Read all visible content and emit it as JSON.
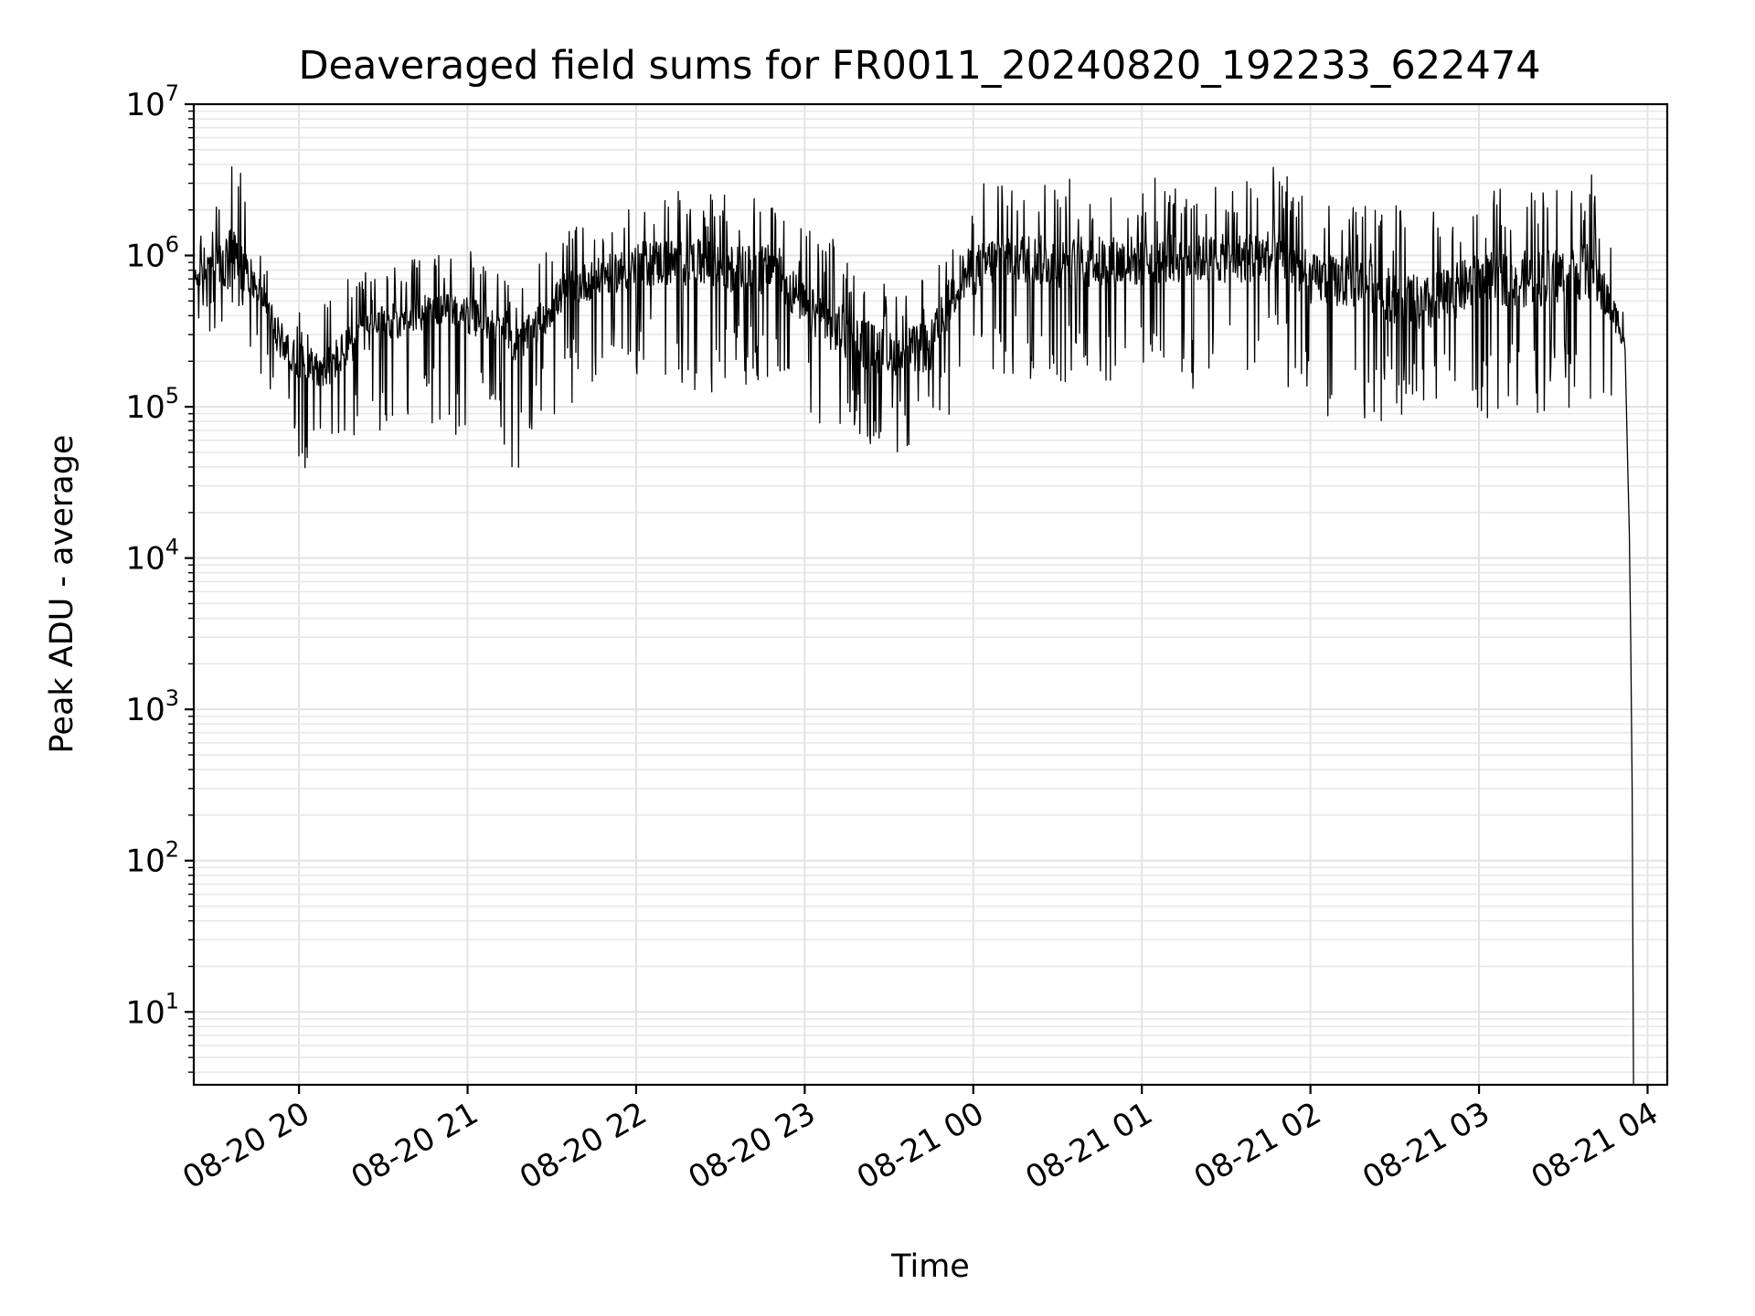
{
  "chart_data": {
    "type": "line",
    "title": "Deaveraged field sums for FR0011_20240820_192233_622474",
    "xlabel": "Time",
    "ylabel": "Peak ADU - average",
    "x_scale": "time",
    "y_scale": "log",
    "xlim": [
      "2024-08-20 19:22:33",
      "2024-08-21 04:07:00"
    ],
    "ylim": [
      3.3,
      10000000
    ],
    "grid": true,
    "x_ticks": [
      {
        "value": "2024-08-20 20:00",
        "label": "08-20 20"
      },
      {
        "value": "2024-08-20 21:00",
        "label": "08-20 21"
      },
      {
        "value": "2024-08-20 22:00",
        "label": "08-20 22"
      },
      {
        "value": "2024-08-20 23:00",
        "label": "08-20 23"
      },
      {
        "value": "2024-08-21 00:00",
        "label": "08-21 00"
      },
      {
        "value": "2024-08-21 01:00",
        "label": "08-21 01"
      },
      {
        "value": "2024-08-21 02:00",
        "label": "08-21 02"
      },
      {
        "value": "2024-08-21 03:00",
        "label": "08-21 03"
      },
      {
        "value": "2024-08-21 04:00",
        "label": "08-21 04"
      }
    ],
    "y_ticks": [
      {
        "value": 10,
        "base": "10",
        "exp": "1"
      },
      {
        "value": 100,
        "base": "10",
        "exp": "2"
      },
      {
        "value": 1000,
        "base": "10",
        "exp": "3"
      },
      {
        "value": 10000,
        "base": "10",
        "exp": "4"
      },
      {
        "value": 100000,
        "base": "10",
        "exp": "5"
      },
      {
        "value": 1000000,
        "base": "10",
        "exp": "6"
      },
      {
        "value": 10000000,
        "base": "10",
        "exp": "7"
      }
    ],
    "series": [
      {
        "color": "#000000",
        "envelope": [
          {
            "t": "2024-08-20 19:22:33",
            "median": 700000,
            "low": 400000,
            "high": 1000000
          },
          {
            "t": "2024-08-20 19:30",
            "median": 800000,
            "low": 280000,
            "high": 2800000
          },
          {
            "t": "2024-08-20 19:37",
            "median": 900000,
            "low": 350000,
            "high": 6000000
          },
          {
            "t": "2024-08-20 19:45",
            "median": 650000,
            "low": 200000,
            "high": 1300000
          },
          {
            "t": "2024-08-20 19:52",
            "median": 300000,
            "low": 60000,
            "high": 800000
          },
          {
            "t": "2024-08-20 20:00",
            "median": 200000,
            "low": 40000,
            "high": 480000
          },
          {
            "t": "2024-08-20 20:10",
            "median": 180000,
            "low": 30000,
            "high": 500000
          },
          {
            "t": "2024-08-20 20:20",
            "median": 280000,
            "low": 55000,
            "high": 800000
          },
          {
            "t": "2024-08-20 20:30",
            "median": 350000,
            "low": 60000,
            "high": 900000
          },
          {
            "t": "2024-08-20 20:40",
            "median": 400000,
            "low": 70000,
            "high": 1000000
          },
          {
            "t": "2024-08-20 20:50",
            "median": 450000,
            "low": 70000,
            "high": 1000000
          },
          {
            "t": "2024-08-20 21:00",
            "median": 400000,
            "low": 60000,
            "high": 1100000
          },
          {
            "t": "2024-08-20 21:10",
            "median": 350000,
            "low": 90000,
            "high": 800000
          },
          {
            "t": "2024-08-20 21:17",
            "median": 250000,
            "low": 30000,
            "high": 600000
          },
          {
            "t": "2024-08-20 21:25",
            "median": 350000,
            "low": 70000,
            "high": 900000
          },
          {
            "t": "2024-08-20 21:35",
            "median": 600000,
            "low": 100000,
            "high": 1600000
          },
          {
            "t": "2024-08-20 21:50",
            "median": 750000,
            "low": 130000,
            "high": 2000000
          },
          {
            "t": "2024-08-20 22:05",
            "median": 900000,
            "low": 150000,
            "high": 3000000
          },
          {
            "t": "2024-08-20 22:20",
            "median": 900000,
            "low": 130000,
            "high": 3000000
          },
          {
            "t": "2024-08-20 22:35",
            "median": 800000,
            "low": 120000,
            "high": 2800000
          },
          {
            "t": "2024-08-20 22:50",
            "median": 800000,
            "low": 150000,
            "high": 3000000
          },
          {
            "t": "2024-08-20 23:00",
            "median": 450000,
            "low": 90000,
            "high": 1500000
          },
          {
            "t": "2024-08-20 23:15",
            "median": 300000,
            "low": 60000,
            "high": 1200000
          },
          {
            "t": "2024-08-20 23:30",
            "median": 220000,
            "low": 50000,
            "high": 700000
          },
          {
            "t": "2024-08-20 23:45",
            "median": 250000,
            "low": 50000,
            "high": 900000
          },
          {
            "t": "2024-08-20 23:55",
            "median": 700000,
            "low": 100000,
            "high": 2500000
          },
          {
            "t": "2024-08-21 00:10",
            "median": 1000000,
            "low": 150000,
            "high": 3500000
          },
          {
            "t": "2024-08-21 00:30",
            "median": 900000,
            "low": 130000,
            "high": 3200000
          },
          {
            "t": "2024-08-21 00:50",
            "median": 900000,
            "low": 120000,
            "high": 3500000
          },
          {
            "t": "2024-08-21 01:10",
            "median": 950000,
            "low": 130000,
            "high": 3200000
          },
          {
            "t": "2024-08-21 01:30",
            "median": 950000,
            "low": 130000,
            "high": 3200000
          },
          {
            "t": "2024-08-21 01:50",
            "median": 1000000,
            "low": 150000,
            "high": 4000000
          },
          {
            "t": "2024-08-21 02:00",
            "median": 700000,
            "low": 80000,
            "high": 2500000
          },
          {
            "t": "2024-08-21 02:20",
            "median": 650000,
            "low": 80000,
            "high": 2400000
          },
          {
            "t": "2024-08-21 02:40",
            "median": 450000,
            "low": 80000,
            "high": 2000000
          },
          {
            "t": "2024-08-21 03:00",
            "median": 700000,
            "low": 80000,
            "high": 2600000
          },
          {
            "t": "2024-08-21 03:20",
            "median": 700000,
            "low": 90000,
            "high": 3000000
          },
          {
            "t": "2024-08-21 03:40",
            "median": 800000,
            "low": 100000,
            "high": 3500000
          },
          {
            "t": "2024-08-21 03:50",
            "median": 350000,
            "low": 70000,
            "high": 700000
          },
          {
            "t": "2024-08-21 03:52",
            "median": 250000,
            "low": 60000,
            "high": 400000
          }
        ],
        "tail": [
          {
            "t": "2024-08-21 03:53",
            "y": 35000
          },
          {
            "t": "2024-08-21 03:53:30",
            "y": 15000
          },
          {
            "t": "2024-08-21 03:54",
            "y": 3000
          },
          {
            "t": "2024-08-21 03:54:30",
            "y": 300
          },
          {
            "t": "2024-08-21 03:55",
            "y": 3.3
          }
        ]
      }
    ]
  }
}
